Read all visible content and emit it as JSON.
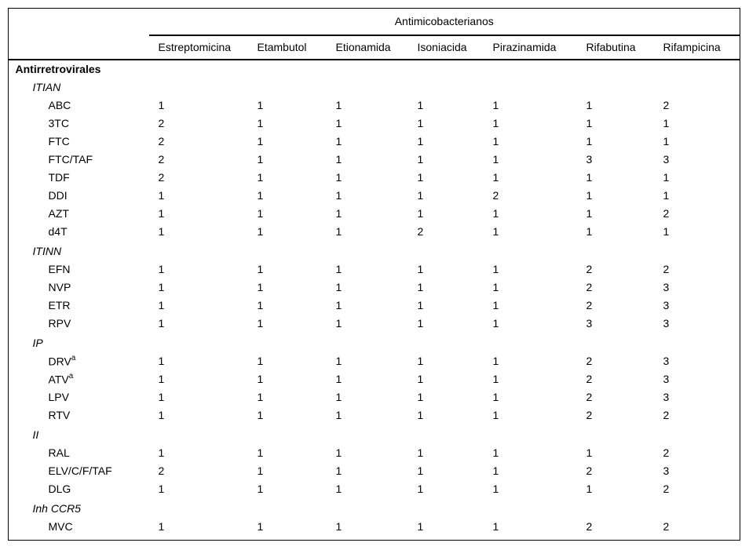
{
  "colors": {
    "text": "#000000",
    "background": "#ffffff",
    "rule": "#000000"
  },
  "table": {
    "spanner": "Antimicobacterianos",
    "row_group_header": "Antirretrovirales",
    "columns": [
      "Estreptomicina",
      "Etambutol",
      "Etionamida",
      "Isoniacida",
      "Pirazinamida",
      "Rifabutina",
      "Rifampicina"
    ],
    "sections": [
      {
        "label": "ITIAN",
        "rows": [
          {
            "label": "ABC",
            "sup": "",
            "values": [
              1,
              1,
              1,
              1,
              1,
              1,
              2
            ]
          },
          {
            "label": "3TC",
            "sup": "",
            "values": [
              2,
              1,
              1,
              1,
              1,
              1,
              1
            ]
          },
          {
            "label": "FTC",
            "sup": "",
            "values": [
              2,
              1,
              1,
              1,
              1,
              1,
              1
            ]
          },
          {
            "label": "FTC/TAF",
            "sup": "",
            "values": [
              2,
              1,
              1,
              1,
              1,
              3,
              3
            ]
          },
          {
            "label": "TDF",
            "sup": "",
            "values": [
              2,
              1,
              1,
              1,
              1,
              1,
              1
            ]
          },
          {
            "label": "DDI",
            "sup": "",
            "values": [
              1,
              1,
              1,
              1,
              2,
              1,
              1
            ]
          },
          {
            "label": "AZT",
            "sup": "",
            "values": [
              1,
              1,
              1,
              1,
              1,
              1,
              2
            ]
          },
          {
            "label": "d4T",
            "sup": "",
            "values": [
              1,
              1,
              1,
              2,
              1,
              1,
              1
            ]
          }
        ]
      },
      {
        "label": "ITINN",
        "rows": [
          {
            "label": "EFN",
            "sup": "",
            "values": [
              1,
              1,
              1,
              1,
              1,
              2,
              2
            ]
          },
          {
            "label": "NVP",
            "sup": "",
            "values": [
              1,
              1,
              1,
              1,
              1,
              2,
              3
            ]
          },
          {
            "label": "ETR",
            "sup": "",
            "values": [
              1,
              1,
              1,
              1,
              1,
              2,
              3
            ]
          },
          {
            "label": "RPV",
            "sup": "",
            "values": [
              1,
              1,
              1,
              1,
              1,
              3,
              3
            ]
          }
        ]
      },
      {
        "label": "IP",
        "rows": [
          {
            "label": "DRV",
            "sup": "a",
            "values": [
              1,
              1,
              1,
              1,
              1,
              2,
              3
            ]
          },
          {
            "label": "ATV",
            "sup": "a",
            "values": [
              1,
              1,
              1,
              1,
              1,
              2,
              3
            ]
          },
          {
            "label": "LPV",
            "sup": "",
            "values": [
              1,
              1,
              1,
              1,
              1,
              2,
              3
            ]
          },
          {
            "label": "RTV",
            "sup": "",
            "values": [
              1,
              1,
              1,
              1,
              1,
              2,
              2
            ]
          }
        ]
      },
      {
        "label": "II",
        "rows": [
          {
            "label": "RAL",
            "sup": "",
            "values": [
              1,
              1,
              1,
              1,
              1,
              1,
              2
            ]
          },
          {
            "label": "ELV/C/F/TAF",
            "sup": "",
            "values": [
              2,
              1,
              1,
              1,
              1,
              2,
              3
            ]
          },
          {
            "label": "DLG",
            "sup": "",
            "values": [
              1,
              1,
              1,
              1,
              1,
              1,
              2
            ]
          }
        ]
      },
      {
        "label": "Inh CCR5",
        "rows": [
          {
            "label": "MVC",
            "sup": "",
            "values": [
              1,
              1,
              1,
              1,
              1,
              2,
              2
            ]
          }
        ]
      }
    ]
  }
}
